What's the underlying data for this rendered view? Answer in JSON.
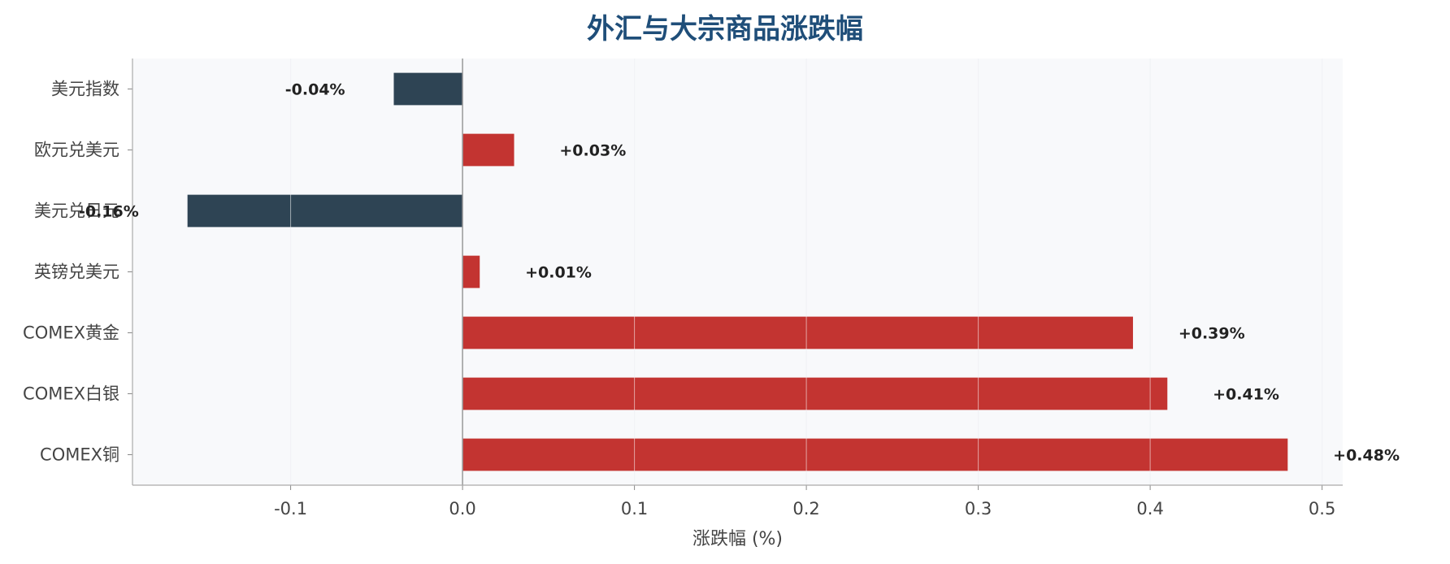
{
  "chart_data": {
    "type": "bar",
    "orientation": "horizontal",
    "title": "外汇与大宗商品涨跌幅",
    "xlabel": "涨跌幅 (%)",
    "ylabel": "",
    "categories": [
      "美元指数",
      "欧元兑美元",
      "美元兑日元",
      "英镑兑美元",
      "COMEX黄金",
      "COMEX白银",
      "COMEX铜"
    ],
    "values": [
      -0.04,
      0.03,
      -0.16,
      0.01,
      0.39,
      0.41,
      0.48
    ],
    "data_labels": [
      "-0.04%",
      "+0.03%",
      "-0.16%",
      "+0.01%",
      "+0.39%",
      "+0.41%",
      "+0.48%"
    ],
    "xlim": [
      -0.192,
      0.512
    ],
    "xticks": [
      -0.1,
      0.0,
      0.1,
      0.2,
      0.3,
      0.4,
      0.5
    ],
    "xtick_labels": [
      "-0.1",
      "0.0",
      "0.1",
      "0.2",
      "0.3",
      "0.4",
      "0.5"
    ],
    "grid": "vertical",
    "colors": {
      "positive": "#c33431",
      "negative": "#2e4454",
      "plot_background": "#f8f9fb",
      "grid": "#e2e5ea",
      "title": "#1f4e79",
      "zero_line": "#999999"
    }
  }
}
